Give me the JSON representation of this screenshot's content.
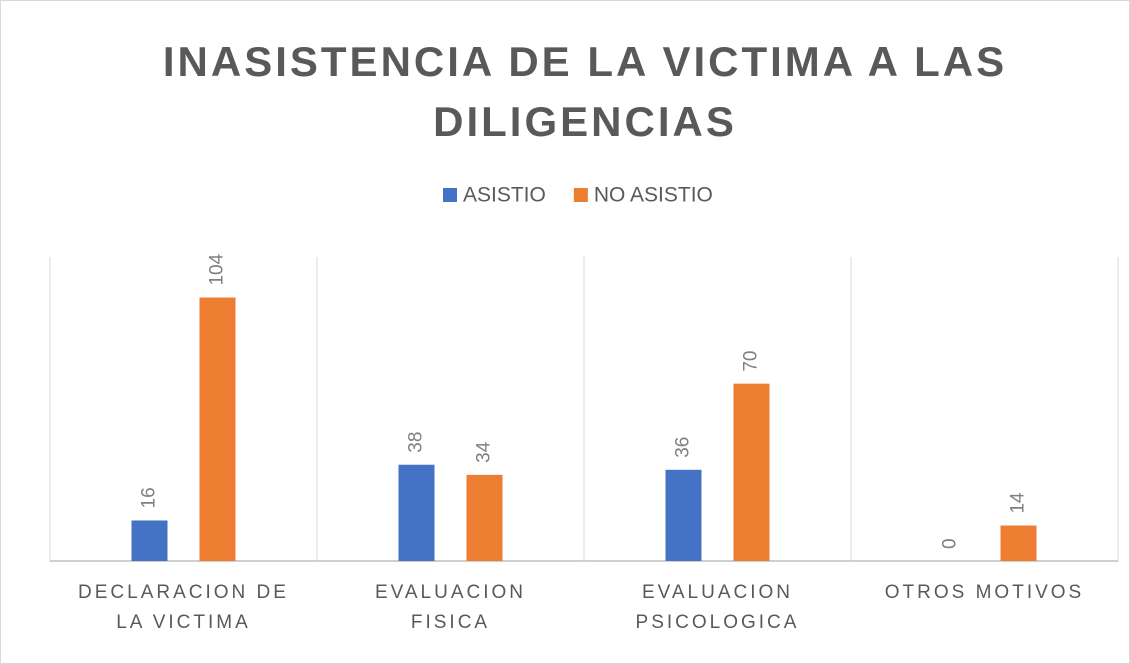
{
  "chart_data": {
    "type": "bar",
    "title": "INASISTENCIA DE LA VICTIMA A LAS DILIGENCIAS",
    "categories": [
      "DECLARACION DE LA VICTIMA",
      "EVALUACION FISICA",
      "EVALUACION PSICOLOGICA",
      "OTROS MOTIVOS"
    ],
    "series": [
      {
        "name": "ASISTIO",
        "color": "#4472c4",
        "values": [
          16,
          38,
          36,
          0
        ]
      },
      {
        "name": "NO ASISTIO",
        "color": "#ed7d31",
        "values": [
          104,
          34,
          70,
          14
        ]
      }
    ],
    "ylim": [
      0,
      120
    ]
  }
}
